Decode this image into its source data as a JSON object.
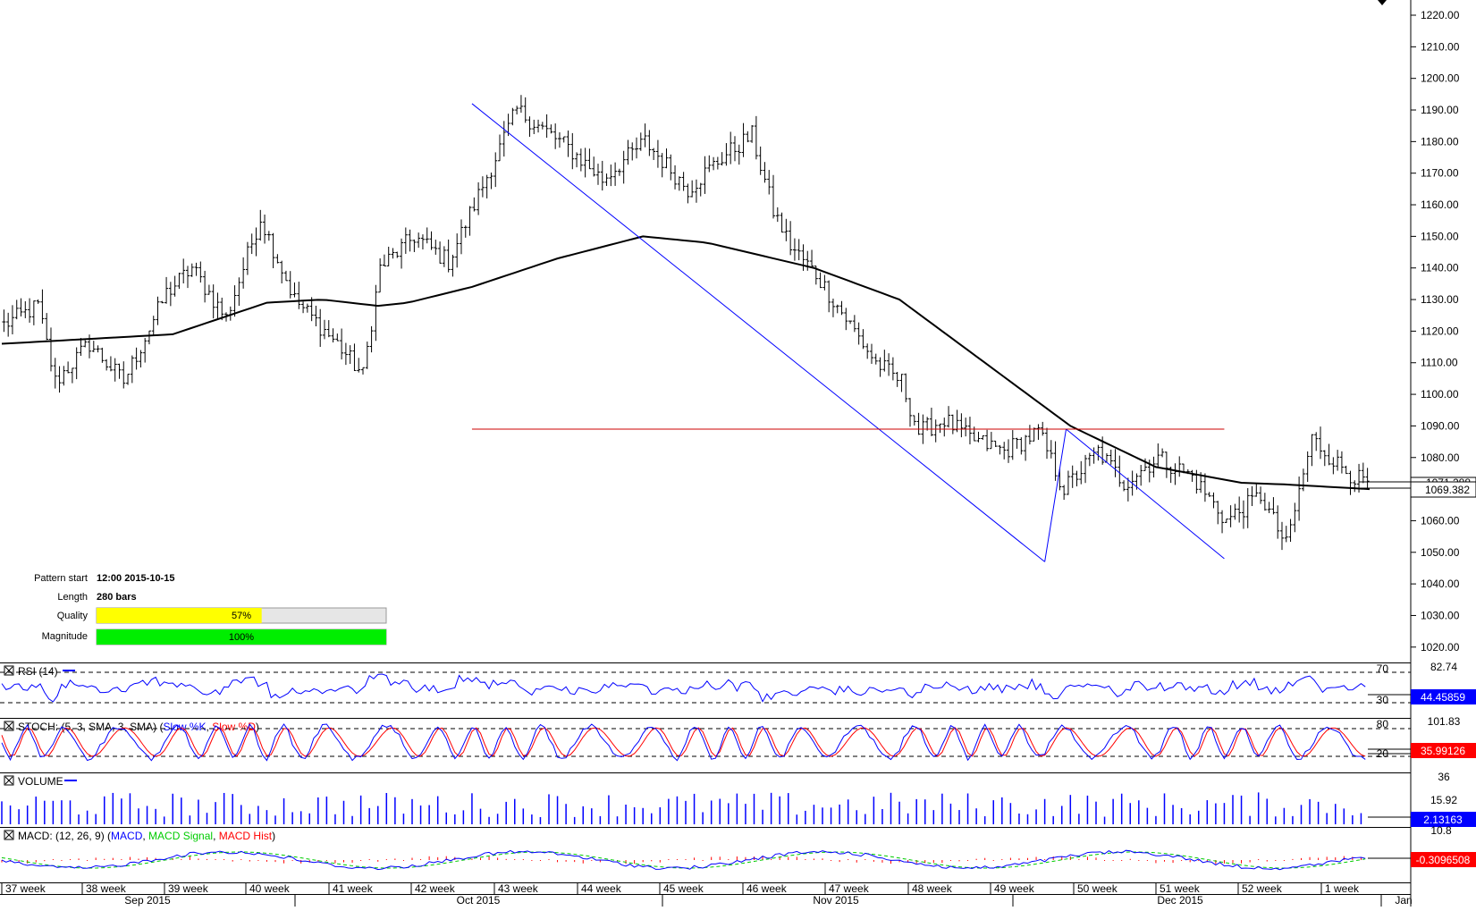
{
  "pattern_info": {
    "pattern_start_label": "Pattern start",
    "pattern_start_value": "12:00 2015-10-15",
    "length_label": "Length",
    "length_value": "280 bars",
    "quality_label": "Quality",
    "quality_value": "57%",
    "quality_fraction": 0.57,
    "quality_color": "#ffff00",
    "magnitude_label": "Magnitude",
    "magnitude_value": "100%",
    "magnitude_fraction": 1.0,
    "magnitude_color": "#00ee00"
  },
  "chart_data": {
    "type": "bar",
    "price_ticks": [
      "1220.00",
      "1210.00",
      "1200.00",
      "1190.00",
      "1180.00",
      "1170.00",
      "1160.00",
      "1150.00",
      "1140.00",
      "1130.00",
      "1120.00",
      "1110.00",
      "1100.00",
      "1090.00",
      "1080.00",
      "1070.00",
      "1060.00",
      "1050.00",
      "1040.00",
      "1030.00",
      "1020.00"
    ],
    "ylim": [
      1014,
      1224
    ],
    "last_price_label": "1069.382",
    "last_price": 1069.382,
    "last_price_covered_label": "1071.288",
    "ohlc_series": {
      "bar_count": 320,
      "anchors": [
        [
          0,
          1122
        ],
        [
          8,
          1128
        ],
        [
          12,
          1104
        ],
        [
          20,
          1116
        ],
        [
          28,
          1104
        ],
        [
          38,
          1132
        ],
        [
          44,
          1140
        ],
        [
          52,
          1124
        ],
        [
          60,
          1156
        ],
        [
          68,
          1130
        ],
        [
          78,
          1116
        ],
        [
          84,
          1106
        ],
        [
          88,
          1140
        ],
        [
          96,
          1150
        ],
        [
          104,
          1142
        ],
        [
          112,
          1166
        ],
        [
          120,
          1190
        ],
        [
          132,
          1178
        ],
        [
          140,
          1168
        ],
        [
          150,
          1180
        ],
        [
          160,
          1165
        ],
        [
          168,
          1175
        ],
        [
          175,
          1182
        ],
        [
          180,
          1158
        ],
        [
          184,
          1147
        ],
        [
          190,
          1138
        ],
        [
          198,
          1122
        ],
        [
          204,
          1110
        ],
        [
          210,
          1104
        ],
        [
          214,
          1088
        ],
        [
          220,
          1092
        ],
        [
          226,
          1086
        ],
        [
          234,
          1082
        ],
        [
          242,
          1088
        ],
        [
          248,
          1070
        ],
        [
          256,
          1082
        ],
        [
          262,
          1072
        ],
        [
          270,
          1080
        ],
        [
          278,
          1074
        ],
        [
          286,
          1060
        ],
        [
          294,
          1068
        ],
        [
          300,
          1052
        ],
        [
          306,
          1086
        ],
        [
          312,
          1078
        ],
        [
          318,
          1072
        ]
      ]
    },
    "moving_average": [
      [
        0,
        1116
      ],
      [
        40,
        1119
      ],
      [
        62,
        1129
      ],
      [
        75,
        1130
      ],
      [
        88,
        1128
      ],
      [
        95,
        1129
      ],
      [
        110,
        1134
      ],
      [
        130,
        1143
      ],
      [
        150,
        1150
      ],
      [
        165,
        1148
      ],
      [
        190,
        1140
      ],
      [
        210,
        1130
      ],
      [
        230,
        1110
      ],
      [
        250,
        1090
      ],
      [
        270,
        1077
      ],
      [
        290,
        1072
      ],
      [
        300,
        1071.5
      ],
      [
        320,
        1070
      ]
    ],
    "pattern_lines": [
      {
        "color": "#0000ff",
        "points": [
          [
            110,
            1192
          ],
          [
            244,
            1047
          ]
        ]
      },
      {
        "color": "#0000ff",
        "points": [
          [
            244,
            1047
          ],
          [
            249,
            1089
          ]
        ]
      },
      {
        "color": "#0000ff",
        "points": [
          [
            249,
            1089
          ],
          [
            286,
            1048
          ]
        ]
      }
    ],
    "resistance_line": {
      "color": "#cc0000",
      "y": 1089,
      "from": 110,
      "to": 286
    },
    "x_week_labels": [
      "37 week",
      "38 week",
      "39 week",
      "40 week",
      "41 week",
      "42 week",
      "43 week",
      "44 week",
      "45 week",
      "46 week",
      "47 week",
      "48 week",
      "49 week",
      "50 week",
      "51 week",
      "52 week",
      "1 week"
    ],
    "x_month_labels": [
      "Sep 2015",
      "Oct 2015",
      "Nov 2015",
      "Dec 2015",
      "Jan"
    ]
  },
  "indicators": {
    "rsi": {
      "title": "RSI (14)",
      "levels": [
        "70",
        "30"
      ],
      "top_label": "82.74",
      "value": "44.45859",
      "color": "#0000ff",
      "badge_color": "#0000ff"
    },
    "stoch": {
      "title_prefix": "STOCH: (5, 3, SMA, 3, SMA) (",
      "slow_k": "Slow %K",
      "sep": ", ",
      "slow_d": "Slow %D",
      "title_suffix": ")",
      "levels": [
        "80",
        "20"
      ],
      "top_label": "101.83",
      "value": "35.99126",
      "k_color": "#0000ff",
      "d_color": "#ff0000",
      "badge_color": "#ff0000"
    },
    "volume": {
      "title": "VOLUME",
      "labels": [
        "36",
        "15.92"
      ],
      "value": "2.13163",
      "color": "#0000ff",
      "badge_color": "#0000ff"
    },
    "macd": {
      "title_prefix": "MACD: (12, 26, 9) (",
      "macd": "MACD",
      "sep1": ", ",
      "signal": "MACD Signal",
      "sep2": ", ",
      "hist": "MACD Hist",
      "title_suffix": ")",
      "top_label": "10.8",
      "value": "-0.3096508",
      "macd_color": "#0000ff",
      "signal_color": "#00cc00",
      "hist_color": "#ff0000",
      "badge_color": "#ff0000"
    }
  }
}
